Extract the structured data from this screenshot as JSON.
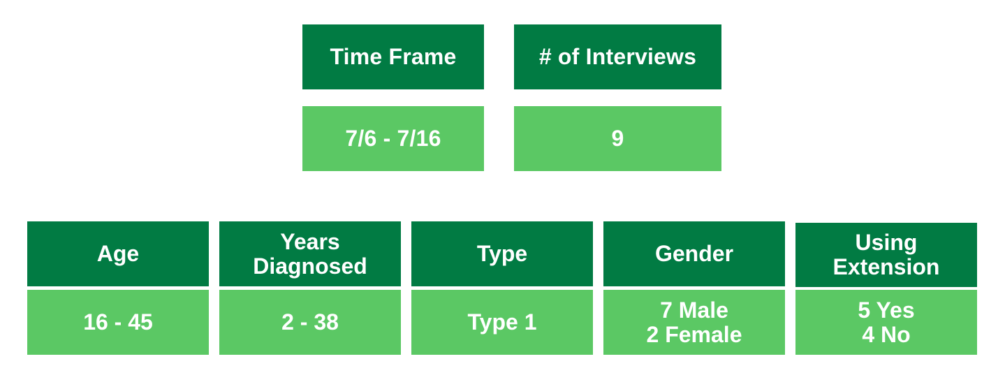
{
  "colors": {
    "header_bg": "#017b43",
    "value_bg": "#5bc864",
    "text": "#ffffff"
  },
  "summary": [
    {
      "header": "Time Frame",
      "value": "7/6 - 7/16"
    },
    {
      "header": "# of Interviews",
      "value": "9"
    }
  ],
  "demographics": [
    {
      "header": [
        "Age"
      ],
      "value": [
        "16 - 45"
      ]
    },
    {
      "header": [
        "Years",
        "Diagnosed"
      ],
      "value": [
        "2 - 38"
      ]
    },
    {
      "header": [
        "Type"
      ],
      "value": [
        "Type 1"
      ]
    },
    {
      "header": [
        "Gender"
      ],
      "value": [
        "7 Male",
        "2 Female"
      ]
    },
    {
      "header": [
        "Using",
        "Extension"
      ],
      "value": [
        "5 Yes",
        "4 No"
      ]
    }
  ]
}
